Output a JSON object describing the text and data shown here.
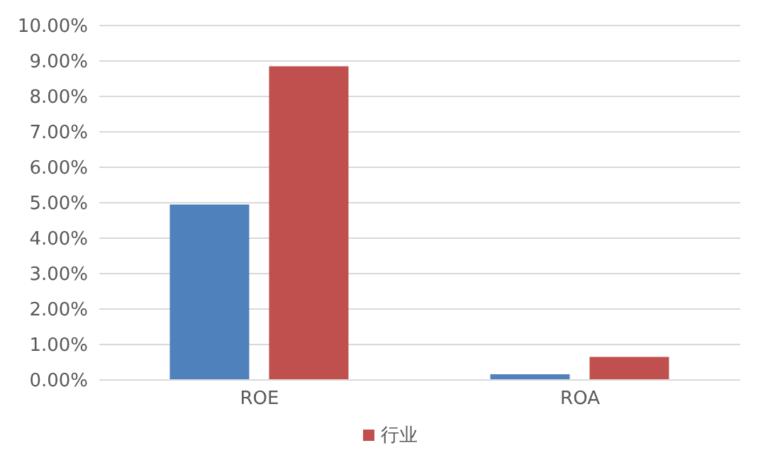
{
  "chart_data": {
    "type": "bar",
    "categories": [
      "ROE",
      "ROA"
    ],
    "series": [
      {
        "color": "#4f81bd",
        "values": [
          4.95,
          0.16
        ]
      },
      {
        "name": "行业",
        "color": "#c0504d",
        "values": [
          8.85,
          0.65
        ]
      }
    ],
    "ylim": [
      0,
      10
    ],
    "yticks": [
      {
        "value": 0,
        "label": "0.00%"
      },
      {
        "value": 1,
        "label": "1.00%"
      },
      {
        "value": 2,
        "label": "2.00%"
      },
      {
        "value": 3,
        "label": "3.00%"
      },
      {
        "value": 4,
        "label": "4.00%"
      },
      {
        "value": 5,
        "label": "5.00%"
      },
      {
        "value": 6,
        "label": "6.00%"
      },
      {
        "value": 7,
        "label": "7.00%"
      },
      {
        "value": 8,
        "label": "8.00%"
      },
      {
        "value": 9,
        "label": "9.00%"
      },
      {
        "value": 10,
        "label": "10.00%"
      }
    ],
    "grid": "y",
    "legend": "bottom"
  }
}
